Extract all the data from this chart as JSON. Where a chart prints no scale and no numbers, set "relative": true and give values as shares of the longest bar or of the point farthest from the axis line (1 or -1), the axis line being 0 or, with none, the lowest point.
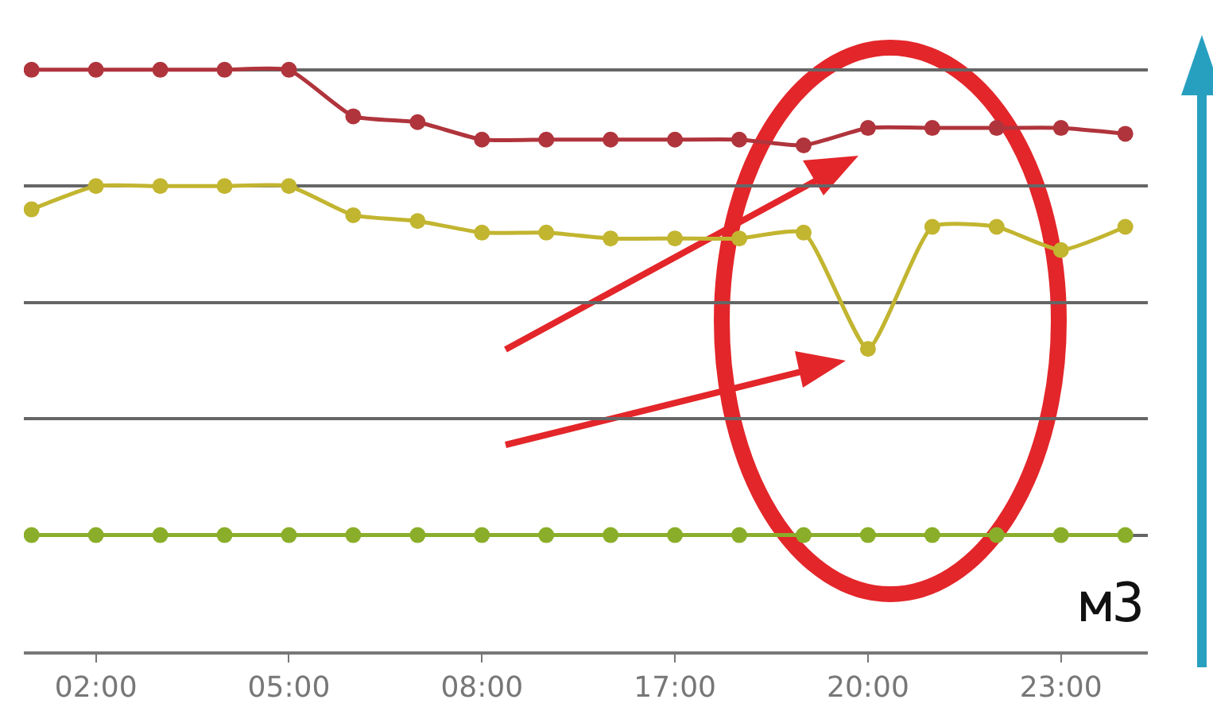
{
  "chart_data": {
    "type": "line",
    "relative": true,
    "categories": [
      null,
      "02:00",
      null,
      null,
      "05:00",
      null,
      null,
      "08:00",
      null,
      null,
      "17:00",
      null,
      null,
      "20:00",
      null,
      null,
      "23:00",
      null
    ],
    "series": [
      {
        "color": "#b0343c",
        "values": [
          1.0,
          1.0,
          1.0,
          1.0,
          1.0,
          0.92,
          0.91,
          0.88,
          0.88,
          0.88,
          0.88,
          0.88,
          0.87,
          0.9,
          0.9,
          0.9,
          0.9,
          0.89
        ]
      },
      {
        "color": "#c2b530",
        "values": [
          0.76,
          0.8,
          0.8,
          0.8,
          0.8,
          0.75,
          0.74,
          0.72,
          0.72,
          0.71,
          0.71,
          0.71,
          0.72,
          0.52,
          0.73,
          0.73,
          0.69,
          0.73
        ]
      },
      {
        "color": "#8aae2a",
        "values": [
          0.2,
          0.2,
          0.2,
          0.2,
          0.2,
          0.2,
          0.2,
          0.2,
          0.2,
          0.2,
          0.2,
          0.2,
          0.2,
          0.2,
          0.2,
          0.2,
          0.2,
          0.2
        ]
      }
    ],
    "annotations": [
      "м3"
    ],
    "grid": true,
    "marker": "circle",
    "line_style": "solid"
  }
}
